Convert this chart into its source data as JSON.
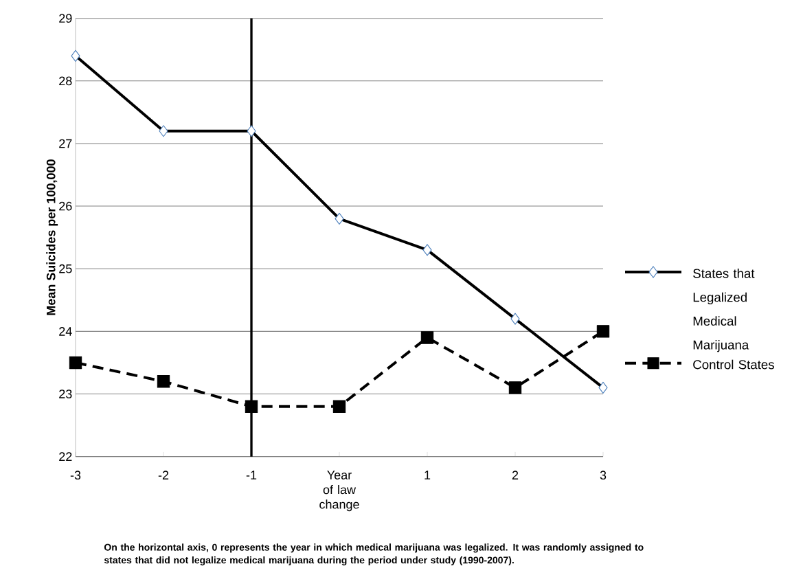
{
  "chart_data": {
    "type": "line",
    "ylabel": "Mean Suicides per 100,000",
    "x": [
      -3,
      -2,
      -1,
      0,
      1,
      2,
      3
    ],
    "xlim": [
      -3,
      3
    ],
    "xticks": [
      -3,
      -2,
      -1,
      {
        "value": 0,
        "label": "Year of law change"
      },
      1,
      2,
      3
    ],
    "ylim": [
      22,
      29
    ],
    "yticks": [
      22,
      23,
      24,
      25,
      26,
      27,
      28,
      29
    ],
    "grid": "y",
    "legend": "right",
    "series": [
      {
        "name": "States that Legalized Medical Marijuana",
        "color": "#000000",
        "marker": "diamond",
        "line_style": "solid",
        "values": [
          28.4,
          27.2,
          27.2,
          25.8,
          25.3,
          24.2,
          23.1
        ]
      },
      {
        "name": "Control States",
        "color": "#000000",
        "marker": "square",
        "line_style": "dashed",
        "values": [
          23.5,
          23.2,
          22.8,
          22.8,
          23.9,
          23.1,
          24.0
        ]
      }
    ],
    "ref_lines": [
      {
        "axis": "x",
        "value": -1,
        "color": "#000000",
        "line_style": "solid"
      }
    ],
    "annotations": [
      "On the horizontal axis, 0 represents the year in which medical marijuana was legalized.  It was randomly assigned to states that did not legalize medical marijuana during the period under study (1990-2007)."
    ]
  }
}
